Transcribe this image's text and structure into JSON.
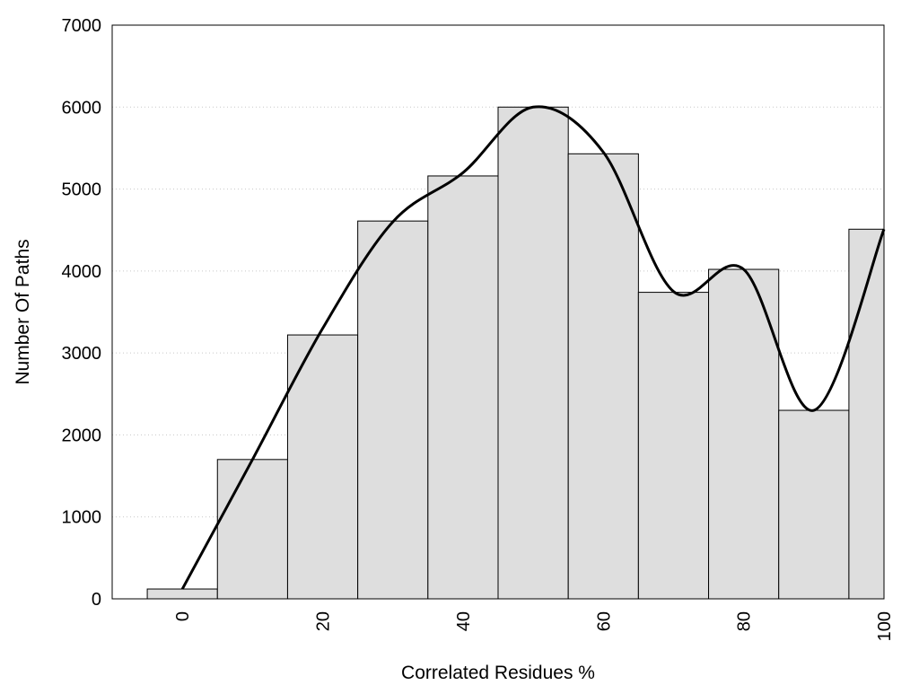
{
  "chart_data": {
    "type": "bar",
    "title": "",
    "xlabel": "Correlated Residues %",
    "ylabel": "Number Of Paths",
    "x": [
      0,
      10,
      20,
      30,
      40,
      50,
      60,
      70,
      80,
      90,
      100
    ],
    "values": [
      120,
      1700,
      3220,
      4610,
      5160,
      6000,
      5430,
      3740,
      4020,
      2300,
      4510
    ],
    "bin_width": 10,
    "xlim": [
      -10,
      100
    ],
    "ylim": [
      0,
      7000
    ],
    "x_ticks": [
      "0",
      "20",
      "40",
      "60",
      "80",
      "100"
    ],
    "y_ticks": [
      "0",
      "1000",
      "2000",
      "3000",
      "4000",
      "5000",
      "6000",
      "7000"
    ],
    "grid": "horizontal dotted",
    "legend": "none",
    "bar_color": "#dedede",
    "bar_edge_color": "#000000",
    "curve": {
      "type": "smooth line",
      "color": "#000000",
      "x": [
        0,
        10,
        20,
        30,
        40,
        50,
        60,
        70,
        80,
        90,
        100
      ],
      "y": [
        120,
        1700,
        3300,
        4600,
        5200,
        6000,
        5450,
        3750,
        4020,
        2300,
        4510
      ]
    }
  }
}
